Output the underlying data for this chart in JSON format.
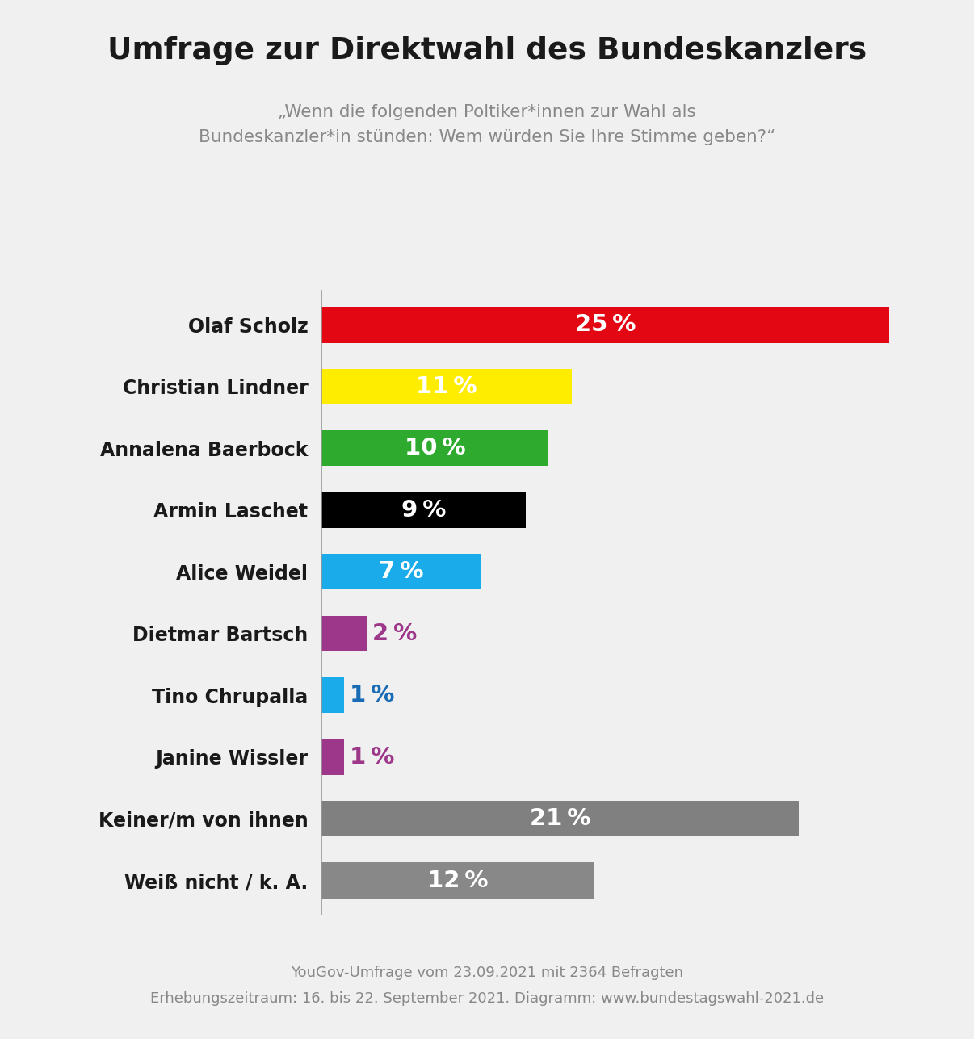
{
  "title": "Umfrage zur Direktwahl des Bundeskanzlers",
  "subtitle": "„Wenn die folgenden Poltiker*innen zur Wahl als\nBundeskanzler*in stünden: Wem würden Sie Ihre Stimme geben?“",
  "categories": [
    "Olaf Scholz",
    "Christian Lindner",
    "Annalena Baerbock",
    "Armin Laschet",
    "Alice Weidel",
    "Dietmar Bartsch",
    "Tino Chrupalla",
    "Janine Wissler",
    "Keiner/m von ihnen",
    "Weiß nicht / k. A."
  ],
  "values": [
    25,
    11,
    10,
    9,
    7,
    2,
    1,
    1,
    21,
    12
  ],
  "colors": [
    "#e30613",
    "#ffed00",
    "#2eab2e",
    "#000000",
    "#1aabeb",
    "#9c3789",
    "#1aabeb",
    "#9c3789",
    "#808080",
    "#888888"
  ],
  "label_colors_inside": [
    "#ffffff",
    "#1a3060",
    "#ffffff",
    "#ffffff",
    "#ffffff",
    "#ffffff",
    "#ffffff",
    "#ffffff",
    "#ffffff",
    "#ffffff"
  ],
  "label_colors_outside": [
    "#ffffff",
    "#1a3060",
    "#ffffff",
    "#ffffff",
    "#ffffff",
    "#9c3789",
    "#1a6bb5",
    "#9c3789",
    "#ffffff",
    "#ffffff"
  ],
  "footnote1": "YouGov-Umfrage vom 23.09.2021 mit 2364 Befragten",
  "footnote2": "Erhebungszeitraum: 16. bis 22. September 2021. Diagramm: www.bundestagswahl-2021.de",
  "background_color": "#f0f0f0",
  "xlim": [
    0,
    27
  ]
}
